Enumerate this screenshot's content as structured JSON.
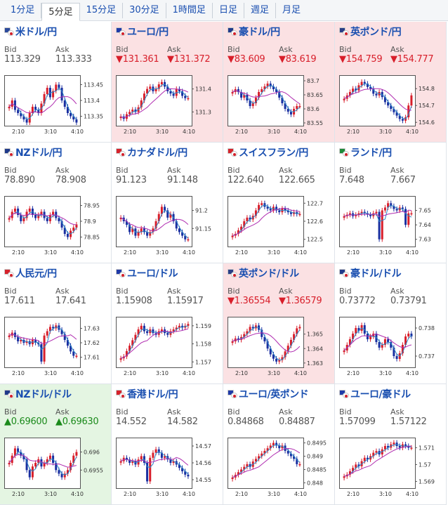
{
  "tabs": [
    {
      "label": "1分足",
      "active": false
    },
    {
      "label": "5分足",
      "active": true
    },
    {
      "label": "15分足",
      "active": false
    },
    {
      "label": "30分足",
      "active": false
    },
    {
      "label": "1時間足",
      "active": false
    },
    {
      "label": "日足",
      "active": false
    },
    {
      "label": "週足",
      "active": false
    },
    {
      "label": "月足",
      "active": false
    }
  ],
  "labels": {
    "bid": "Bid",
    "ask": "Ask"
  },
  "colors": {
    "candle_up": "#d81e2a",
    "candle_down": "#1a2fa0",
    "ma_short": "#2a86c8",
    "ma_long": "#b02cb0",
    "down_bg": "#fbe1e3",
    "up_bg": "#e4f5e2"
  },
  "pairs": [
    {
      "name": "米ドル/円",
      "bid": "113.329",
      "ask": "113.333",
      "trend": "",
      "flags": [
        "us",
        "jp"
      ],
      "chart_data": {
        "type": "candlestick",
        "x_ticks": [
          "2:10",
          "3:10",
          "4:10"
        ],
        "y_ticks": [
          "113.45",
          "113.4",
          "113.35"
        ],
        "ylim": [
          113.32,
          113.48
        ],
        "closes": [
          113.38,
          113.4,
          113.37,
          113.36,
          113.35,
          113.34,
          113.33,
          113.36,
          113.38,
          113.37,
          113.36,
          113.39,
          113.42,
          113.44,
          113.41,
          113.43,
          113.45,
          113.44,
          113.4,
          113.38,
          113.36,
          113.35,
          113.34,
          113.33
        ]
      }
    },
    {
      "name": "ユーロ/円",
      "bid": "▼131.361",
      "ask": "▼131.372",
      "trend": "down",
      "flags": [
        "eu",
        "jp"
      ],
      "chart_data": {
        "type": "candlestick",
        "x_ticks": [
          "2:10",
          "3:10",
          "4:10"
        ],
        "y_ticks": [
          "131.4",
          "131.3"
        ],
        "ylim": [
          131.24,
          131.46
        ],
        "closes": [
          131.28,
          131.27,
          131.29,
          131.3,
          131.31,
          131.3,
          131.32,
          131.35,
          131.38,
          131.4,
          131.41,
          131.39,
          131.4,
          131.42,
          131.43,
          131.41,
          131.39,
          131.38,
          131.37,
          131.4,
          131.39,
          131.37,
          131.36,
          131.36
        ]
      }
    },
    {
      "name": "豪ドル/円",
      "bid": "▼83.609",
      "ask": "▼83.619",
      "trend": "down",
      "flags": [
        "au",
        "jp"
      ],
      "chart_data": {
        "type": "candlestick",
        "x_ticks": [
          "2:10",
          "3:10",
          "4:10"
        ],
        "y_ticks": [
          "83.7",
          "83.65",
          "83.6",
          "83.55"
        ],
        "ylim": [
          83.54,
          83.72
        ],
        "closes": [
          83.66,
          83.67,
          83.66,
          83.64,
          83.65,
          83.63,
          83.61,
          83.62,
          83.64,
          83.66,
          83.67,
          83.68,
          83.69,
          83.68,
          83.67,
          83.66,
          83.64,
          83.62,
          83.6,
          83.59,
          83.58,
          83.6,
          83.61,
          83.61
        ]
      }
    },
    {
      "name": "英ポンド/円",
      "bid": "▼154.759",
      "ask": "▼154.777",
      "trend": "down",
      "flags": [
        "gb",
        "jp"
      ],
      "chart_data": {
        "type": "candlestick",
        "x_ticks": [
          "2:10",
          "3:10",
          "4:10"
        ],
        "y_ticks": [
          "154.8",
          "154.7",
          "154.6"
        ],
        "ylim": [
          154.58,
          154.88
        ],
        "closes": [
          154.74,
          154.76,
          154.78,
          154.8,
          154.79,
          154.82,
          154.84,
          154.83,
          154.81,
          154.8,
          154.77,
          154.76,
          154.78,
          154.75,
          154.72,
          154.7,
          154.68,
          154.66,
          154.64,
          154.62,
          154.61,
          154.63,
          154.7,
          154.76
        ]
      }
    },
    {
      "name": "NZドル/円",
      "bid": "78.890",
      "ask": "78.908",
      "trend": "",
      "flags": [
        "nz",
        "jp"
      ],
      "chart_data": {
        "type": "candlestick",
        "x_ticks": [
          "2:10",
          "3:10",
          "4:10"
        ],
        "y_ticks": [
          "78.95",
          "78.9",
          "78.85"
        ],
        "ylim": [
          78.82,
          78.98
        ],
        "closes": [
          78.91,
          78.93,
          78.94,
          78.92,
          78.9,
          78.91,
          78.93,
          78.94,
          78.92,
          78.91,
          78.92,
          78.93,
          78.91,
          78.9,
          78.92,
          78.93,
          78.91,
          78.9,
          78.88,
          78.86,
          78.85,
          78.87,
          78.88,
          78.89
        ]
      }
    },
    {
      "name": "カナダドル/円",
      "bid": "91.123",
      "ask": "91.148",
      "trend": "",
      "flags": [
        "ca",
        "jp"
      ],
      "chart_data": {
        "type": "candlestick",
        "x_ticks": [
          "2:10",
          "3:10",
          "4:10"
        ],
        "y_ticks": [
          "91.2",
          "91.15"
        ],
        "ylim": [
          91.1,
          91.24
        ],
        "closes": [
          91.18,
          91.17,
          91.16,
          91.14,
          91.15,
          91.13,
          91.14,
          91.15,
          91.14,
          91.13,
          91.14,
          91.15,
          91.17,
          91.19,
          91.21,
          91.2,
          91.18,
          91.19,
          91.17,
          91.15,
          91.14,
          91.13,
          91.12,
          91.12
        ]
      }
    },
    {
      "name": "スイスフラン/円",
      "bid": "122.640",
      "ask": "122.665",
      "trend": "",
      "flags": [
        "ch",
        "jp"
      ],
      "chart_data": {
        "type": "candlestick",
        "x_ticks": [
          "2:10",
          "3:10",
          "4:10"
        ],
        "y_ticks": [
          "122.7",
          "122.6",
          "122.5"
        ],
        "ylim": [
          122.46,
          122.74
        ],
        "closes": [
          122.52,
          122.53,
          122.55,
          122.57,
          122.6,
          122.62,
          122.61,
          122.63,
          122.66,
          122.69,
          122.7,
          122.68,
          122.67,
          122.66,
          122.68,
          122.66,
          122.65,
          122.67,
          122.66,
          122.65,
          122.64,
          122.65,
          122.64,
          122.64
        ]
      }
    },
    {
      "name": "ランド/円",
      "bid": "7.648",
      "ask": "7.667",
      "trend": "",
      "flags": [
        "za",
        "jp"
      ],
      "chart_data": {
        "type": "candlestick",
        "x_ticks": [
          "2:10",
          "3:10",
          "4:10"
        ],
        "y_ticks": [
          "7.65",
          "7.64",
          "7.63"
        ],
        "ylim": [
          7.625,
          7.66
        ],
        "closes": [
          7.646,
          7.647,
          7.648,
          7.646,
          7.647,
          7.648,
          7.649,
          7.648,
          7.647,
          7.646,
          7.648,
          7.649,
          7.63,
          7.65,
          7.652,
          7.655,
          7.653,
          7.651,
          7.65,
          7.652,
          7.651,
          7.64,
          7.648,
          7.648
        ]
      }
    },
    {
      "name": "人民元/円",
      "bid": "17.611",
      "ask": "17.641",
      "trend": "",
      "flags": [
        "cn",
        "jp"
      ],
      "chart_data": {
        "type": "candlestick",
        "x_ticks": [
          "2:10",
          "3:10",
          "4:10"
        ],
        "y_ticks": [
          "17.63",
          "17.62",
          "17.61"
        ],
        "ylim": [
          17.603,
          17.638
        ],
        "closes": [
          17.625,
          17.627,
          17.624,
          17.621,
          17.622,
          17.62,
          17.621,
          17.619,
          17.622,
          17.62,
          17.619,
          17.607,
          17.625,
          17.628,
          17.631,
          17.63,
          17.632,
          17.629,
          17.626,
          17.622,
          17.618,
          17.614,
          17.611,
          17.611
        ]
      }
    },
    {
      "name": "ユーロ/ドル",
      "bid": "1.15908",
      "ask": "1.15917",
      "trend": "",
      "flags": [
        "eu",
        "us"
      ],
      "chart_data": {
        "type": "candlestick",
        "x_ticks": [
          "2:10",
          "3:10",
          "4:10"
        ],
        "y_ticks": [
          "1.159",
          "1.158",
          "1.157"
        ],
        "ylim": [
          1.1567,
          1.1595
        ],
        "closes": [
          1.1572,
          1.1573,
          1.1576,
          1.1579,
          1.1582,
          1.1585,
          1.1588,
          1.159,
          1.1587,
          1.1586,
          1.1588,
          1.1586,
          1.1585,
          1.1587,
          1.1588,
          1.1586,
          1.1585,
          1.1587,
          1.1588,
          1.1589,
          1.159,
          1.1589,
          1.159,
          1.1591
        ]
      }
    },
    {
      "name": "英ポンド/ドル",
      "bid": "▼1.36554",
      "ask": "▼1.36579",
      "trend": "down",
      "flags": [
        "gb",
        "us"
      ],
      "chart_data": {
        "type": "candlestick",
        "x_ticks": [
          "2:10",
          "3:10",
          "4:10"
        ],
        "y_ticks": [
          "1.365",
          "1.364",
          "1.363"
        ],
        "ylim": [
          1.3627,
          1.3662
        ],
        "closes": [
          1.3645,
          1.3647,
          1.3646,
          1.3648,
          1.365,
          1.3652,
          1.3655,
          1.3654,
          1.3656,
          1.3653,
          1.3648,
          1.3645,
          1.364,
          1.3636,
          1.3633,
          1.3631,
          1.3632,
          1.3634,
          1.3638,
          1.3642,
          1.3646,
          1.365,
          1.3654,
          1.3655
        ]
      }
    },
    {
      "name": "豪ドル/ドル",
      "bid": "0.73772",
      "ask": "0.73791",
      "trend": "",
      "flags": [
        "au",
        "us"
      ],
      "chart_data": {
        "type": "candlestick",
        "x_ticks": [
          "2:10",
          "3:10",
          "4:10"
        ],
        "y_ticks": [
          "0.738",
          "0.737"
        ],
        "ylim": [
          0.7366,
          0.7384
        ],
        "closes": [
          0.7372,
          0.7374,
          0.7376,
          0.7378,
          0.738,
          0.7379,
          0.7381,
          0.7378,
          0.7376,
          0.7377,
          0.7378,
          0.7375,
          0.7373,
          0.7374,
          0.7376,
          0.7375,
          0.7373,
          0.737,
          0.7369,
          0.7371,
          0.7374,
          0.7377,
          0.7378,
          0.7377
        ]
      }
    },
    {
      "name": "NZドル/ドル",
      "bid": "▲0.69600",
      "ask": "▲0.69630",
      "trend": "up",
      "flags": [
        "nz",
        "us"
      ],
      "chart_data": {
        "type": "candlestick",
        "x_ticks": [
          "2:10",
          "3:10",
          "4:10"
        ],
        "y_ticks": [
          "0.696",
          "0.6955"
        ],
        "ylim": [
          0.695,
          0.6964
        ],
        "closes": [
          0.6957,
          0.6959,
          0.6961,
          0.696,
          0.6959,
          0.6958,
          0.6955,
          0.6953,
          0.6956,
          0.6957,
          0.6958,
          0.6956,
          0.6957,
          0.6958,
          0.6959,
          0.6957,
          0.6955,
          0.6954,
          0.6953,
          0.6954,
          0.6955,
          0.6957,
          0.6959,
          0.696
        ]
      }
    },
    {
      "name": "香港ドル/円",
      "bid": "14.552",
      "ask": "14.582",
      "trend": "",
      "flags": [
        "hk",
        "jp"
      ],
      "chart_data": {
        "type": "candlestick",
        "x_ticks": [
          "2:10",
          "3:10",
          "4:10"
        ],
        "y_ticks": [
          "14.57",
          "14.56",
          "14.55"
        ],
        "ylim": [
          14.545,
          14.575
        ],
        "closes": [
          14.561,
          14.563,
          14.562,
          14.56,
          14.561,
          14.559,
          14.562,
          14.564,
          14.56,
          14.549,
          14.563,
          14.566,
          14.568,
          14.566,
          14.563,
          14.564,
          14.562,
          14.56,
          14.561,
          14.559,
          14.557,
          14.555,
          14.553,
          14.552
        ]
      }
    },
    {
      "name": "ユーロ/英ポンド",
      "bid": "0.84868",
      "ask": "0.84887",
      "trend": "",
      "flags": [
        "eu",
        "gb"
      ],
      "chart_data": {
        "type": "candlestick",
        "x_ticks": [
          "2:10",
          "3:10",
          "4:10"
        ],
        "y_ticks": [
          "0.8495",
          "0.849",
          "0.8485",
          "0.848"
        ],
        "ylim": [
          0.8478,
          0.8497
        ],
        "closes": [
          0.8482,
          0.8483,
          0.8484,
          0.8485,
          0.8486,
          0.8487,
          0.8486,
          0.8488,
          0.8489,
          0.849,
          0.8491,
          0.8492,
          0.8493,
          0.8494,
          0.8495,
          0.8494,
          0.8493,
          0.8494,
          0.8492,
          0.8491,
          0.849,
          0.8489,
          0.8487,
          0.8487
        ]
      }
    },
    {
      "name": "ユーロ/豪ドル",
      "bid": "1.57099",
      "ask": "1.57122",
      "trend": "",
      "flags": [
        "eu",
        "au"
      ],
      "chart_data": {
        "type": "candlestick",
        "x_ticks": [
          "2:10",
          "3:10",
          "4:10"
        ],
        "y_ticks": [
          "1.571",
          "1.57",
          "1.569"
        ],
        "ylim": [
          1.5686,
          1.5716
        ],
        "closes": [
          1.5693,
          1.5694,
          1.5696,
          1.5698,
          1.57,
          1.5699,
          1.5702,
          1.5704,
          1.5703,
          1.5705,
          1.5707,
          1.5708,
          1.5706,
          1.5709,
          1.5711,
          1.571,
          1.5712,
          1.5713,
          1.5711,
          1.571,
          1.5712,
          1.5711,
          1.571,
          1.571
        ]
      }
    }
  ]
}
